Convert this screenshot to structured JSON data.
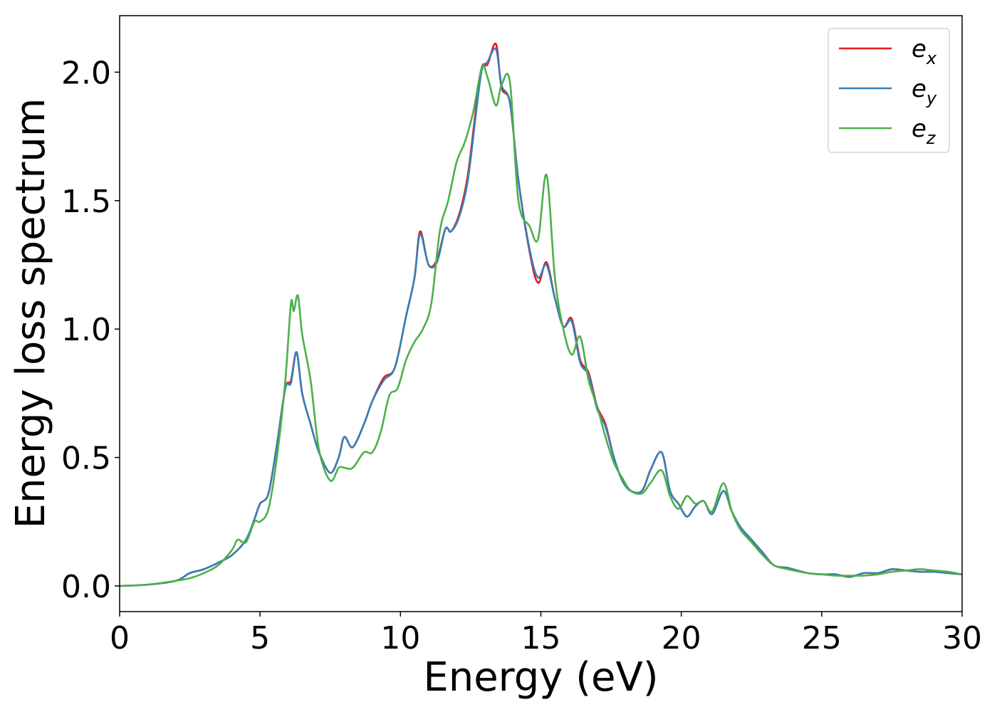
{
  "chart_data": {
    "type": "line",
    "title": "",
    "xlabel": "Energy (eV)",
    "ylabel": "Energy loss spectrum",
    "xlim": [
      0,
      30
    ],
    "ylim": [
      -0.1,
      2.22
    ],
    "xticks": [
      0,
      5,
      10,
      15,
      20,
      25,
      30
    ],
    "xtick_labels": [
      "0",
      "5",
      "10",
      "15",
      "20",
      "25",
      "30"
    ],
    "yticks": [
      0.0,
      0.5,
      1.0,
      1.5,
      2.0
    ],
    "ytick_labels": [
      "0.0",
      "0.5",
      "1.0",
      "1.5",
      "2.0"
    ],
    "grid": false,
    "legend_position": "top-right",
    "series": [
      {
        "name": "e_x",
        "label_base": "e",
        "label_sub": "x",
        "color": "#e41a1c",
        "x": [
          0,
          1,
          2,
          2.5,
          3,
          3.5,
          4,
          4.5,
          4.8,
          5,
          5.3,
          5.6,
          5.9,
          6.1,
          6.3,
          6.5,
          6.8,
          7.1,
          7.5,
          7.8,
          8,
          8.3,
          8.7,
          9,
          9.4,
          9.8,
          10.2,
          10.5,
          10.7,
          11,
          11.3,
          11.6,
          11.8,
          12.1,
          12.4,
          12.7,
          12.9,
          13.1,
          13.4,
          13.6,
          13.9,
          14.2,
          14.6,
          14.9,
          15.2,
          15.5,
          15.8,
          16.1,
          16.4,
          16.7,
          17,
          17.3,
          17.6,
          17.9,
          18.2,
          18.6,
          18.9,
          19.3,
          19.6,
          19.9,
          20.2,
          20.5,
          20.8,
          21.1,
          21.5,
          21.8,
          22.1,
          22.5,
          22.9,
          23.3,
          23.8,
          24.5,
          25,
          25.5,
          26,
          26.5,
          27,
          27.5,
          28,
          28.5,
          29,
          29.5,
          30
        ],
        "y": [
          0,
          0.005,
          0.02,
          0.05,
          0.065,
          0.09,
          0.12,
          0.18,
          0.26,
          0.32,
          0.36,
          0.55,
          0.77,
          0.8,
          0.91,
          0.75,
          0.63,
          0.52,
          0.44,
          0.5,
          0.58,
          0.54,
          0.63,
          0.72,
          0.81,
          0.85,
          1.05,
          1.2,
          1.38,
          1.25,
          1.27,
          1.39,
          1.38,
          1.45,
          1.6,
          1.87,
          2.02,
          2.03,
          2.11,
          1.94,
          1.88,
          1.58,
          1.3,
          1.18,
          1.26,
          1.12,
          1.01,
          1.04,
          0.88,
          0.83,
          0.7,
          0.63,
          0.5,
          0.41,
          0.37,
          0.37,
          0.45,
          0.52,
          0.37,
          0.32,
          0.27,
          0.31,
          0.33,
          0.28,
          0.37,
          0.29,
          0.23,
          0.18,
          0.13,
          0.08,
          0.07,
          0.05,
          0.045,
          0.045,
          0.035,
          0.05,
          0.05,
          0.065,
          0.06,
          0.055,
          0.055,
          0.05,
          0.045
        ]
      },
      {
        "name": "e_y",
        "label_base": "e",
        "label_sub": "y",
        "color": "#377eb8",
        "x": [
          0,
          1,
          2,
          2.5,
          3,
          3.5,
          4,
          4.5,
          4.8,
          5,
          5.3,
          5.6,
          5.9,
          6.1,
          6.3,
          6.5,
          6.8,
          7.1,
          7.5,
          7.8,
          8,
          8.3,
          8.7,
          9,
          9.4,
          9.8,
          10.2,
          10.5,
          10.7,
          11,
          11.3,
          11.6,
          11.8,
          12.1,
          12.4,
          12.7,
          12.9,
          13.1,
          13.4,
          13.6,
          13.9,
          14.2,
          14.6,
          14.9,
          15.2,
          15.5,
          15.8,
          16.1,
          16.4,
          16.7,
          17,
          17.3,
          17.6,
          17.9,
          18.2,
          18.6,
          18.9,
          19.3,
          19.6,
          19.9,
          20.2,
          20.5,
          20.8,
          21.1,
          21.5,
          21.8,
          22.1,
          22.5,
          22.9,
          23.3,
          23.8,
          24.5,
          25,
          25.5,
          26,
          26.5,
          27,
          27.5,
          28,
          28.5,
          29,
          29.5,
          30
        ],
        "y": [
          0,
          0.005,
          0.02,
          0.05,
          0.065,
          0.09,
          0.12,
          0.18,
          0.26,
          0.32,
          0.36,
          0.55,
          0.77,
          0.79,
          0.91,
          0.75,
          0.63,
          0.52,
          0.44,
          0.5,
          0.58,
          0.54,
          0.63,
          0.72,
          0.8,
          0.85,
          1.05,
          1.2,
          1.37,
          1.25,
          1.26,
          1.39,
          1.38,
          1.44,
          1.58,
          1.85,
          2.01,
          2.04,
          2.09,
          1.95,
          1.88,
          1.58,
          1.31,
          1.2,
          1.25,
          1.12,
          1.01,
          1.03,
          0.87,
          0.82,
          0.69,
          0.62,
          0.5,
          0.41,
          0.37,
          0.37,
          0.45,
          0.52,
          0.37,
          0.32,
          0.27,
          0.31,
          0.33,
          0.28,
          0.37,
          0.29,
          0.23,
          0.18,
          0.13,
          0.08,
          0.07,
          0.05,
          0.045,
          0.045,
          0.035,
          0.05,
          0.05,
          0.065,
          0.06,
          0.055,
          0.055,
          0.05,
          0.045
        ]
      },
      {
        "name": "e_z",
        "label_base": "e",
        "label_sub": "z",
        "color": "#4daf4a",
        "x": [
          0,
          1,
          2,
          2.5,
          3,
          3.5,
          4,
          4.2,
          4.5,
          4.8,
          5,
          5.3,
          5.6,
          5.9,
          6.1,
          6.2,
          6.35,
          6.5,
          6.8,
          7.1,
          7.5,
          7.8,
          8,
          8.3,
          8.7,
          9,
          9.3,
          9.6,
          9.9,
          10.2,
          10.5,
          10.8,
          11.1,
          11.4,
          11.7,
          12,
          12.3,
          12.6,
          12.9,
          13.1,
          13.4,
          13.6,
          13.9,
          14.2,
          14.6,
          14.9,
          15.2,
          15.5,
          15.8,
          16.1,
          16.4,
          16.7,
          17,
          17.3,
          17.6,
          17.9,
          18.2,
          18.6,
          18.9,
          19.3,
          19.6,
          19.9,
          20.2,
          20.5,
          20.8,
          21.1,
          21.5,
          21.8,
          22.1,
          22.5,
          22.9,
          23.3,
          23.8,
          24.5,
          25,
          25.5,
          26,
          26.5,
          27,
          27.5,
          28,
          28.5,
          29,
          29.5,
          30
        ],
        "y": [
          0,
          0.005,
          0.02,
          0.03,
          0.05,
          0.08,
          0.14,
          0.18,
          0.17,
          0.25,
          0.25,
          0.3,
          0.5,
          0.8,
          1.1,
          1.07,
          1.13,
          0.98,
          0.8,
          0.53,
          0.41,
          0.46,
          0.46,
          0.46,
          0.52,
          0.52,
          0.6,
          0.74,
          0.77,
          0.88,
          0.95,
          1.0,
          1.1,
          1.38,
          1.5,
          1.65,
          1.73,
          1.85,
          2.02,
          1.98,
          1.87,
          1.95,
          1.96,
          1.5,
          1.4,
          1.35,
          1.6,
          1.2,
          1.0,
          0.9,
          0.97,
          0.8,
          0.7,
          0.58,
          0.48,
          0.42,
          0.37,
          0.36,
          0.4,
          0.45,
          0.35,
          0.3,
          0.35,
          0.32,
          0.33,
          0.29,
          0.4,
          0.29,
          0.22,
          0.17,
          0.12,
          0.08,
          0.065,
          0.05,
          0.045,
          0.04,
          0.04,
          0.04,
          0.045,
          0.055,
          0.06,
          0.065,
          0.06,
          0.055,
          0.045
        ]
      }
    ]
  }
}
